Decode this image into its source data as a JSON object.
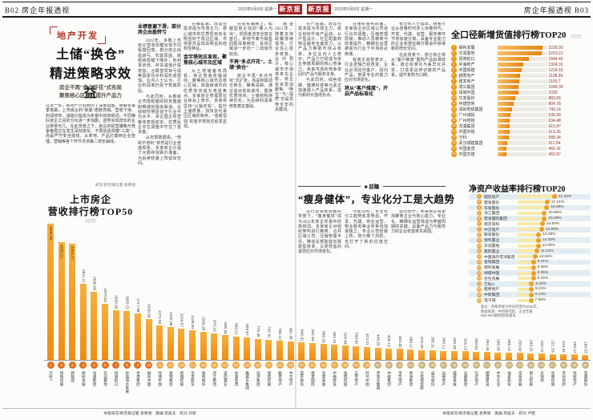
{
  "header": {
    "left_page_no_title": "B02 房企年报透视",
    "left_date": "2023年5月8日 星期一",
    "masthead": "新京报",
    "right_date": "2023年5月8日 星期一",
    "right_page_title_no": "房企年报透视 B03",
    "masthead_color": "#a02020"
  },
  "left_page": {
    "tag": "地产开发",
    "headline_line1": "土储“换仓”",
    "headline_line2": "精进策略求效益",
    "subhead_line1": "房企不再“多点开花”式布局",
    "subhead_line2": "聚焦核心区域、提升产品力",
    "intro": "过去一年，房地产行业经历了深度调整，随着年报季落幕，上市房企的“家底”悉数亮相。营收下滑、利润收窄、减值计提成为年报中的高频词，不同梯队房企之间的分化进一步加剧，逆势实现增长的企业寥寥无几。在此背景之下，房企的经营策略与竞争格局正在发生深刻变化：不再追逐规模“三高”，而是严守安全底线，从拿地、产品打磨到企业管理、营销等各个环节寻求第二增长曲线。",
    "byline": "采写/新京报记者 袁秀丽",
    "chart_title_line1": "上市房企",
    "chart_title_line2": "营收排行榜TOP50",
    "chart_unit": "（亿元）",
    "columns": [
      {
        "blocks": [
          {
            "h": "业绩普遍下滑，部分房企由盈转亏"
          },
          {
            "p": "2022年，多数上市房企营收规模出现不同程度回落，部分房企由盈转亏。究其原因，除结转规模下降外，毛利率走低、存货减值计提增加、合联营项目亏损等因素均对利润形成侵蚀。业内人士认为，行业利润率仍处于筑底阶段。"
          },
          {
            "p": "与此同时，头部房企凭借稳健的财务盘面和畅通的融资渠道，业绩韧性明显强于行业平均水平。央企国企阵营整体表现稳定，优质民企亦在调整中守住了基本盘。"
          },
          {
            "p": "从年报数据看，“增收不增利”依然是行业普遍现象，多家房企计提了大额存货跌价准备，为后续轻装上阵留出空间。"
          }
        ]
      },
      {
        "blocks": [
          {
            "p": "在销售端，改善性需求成为市场主力，核心城市的优质项目去化明显好于周边区域，市场复苏呈现出明显的结构性特征。"
          },
          {
            "h": "金字塔效应显现，聚焦核心城市及区域"
          },
          {
            "p": "从土地储备布局看，房企普遍收缩战线，聚焦核心城市及核心区域，高能级城市的优质地块成为竞逐焦点。多家房企管理层在业绩会上表示，未来将坚持“以销定投”，提升土储质量，加快去化承压区域的库存，“强者恒强”的金字塔效应愈发显现。"
          }
        ]
      },
      {
        "blocks": [
          {
            "p": "在投资策略上，稳健型房企强调“量入为出”，把现金流安全放在首位，拿地节奏与销售回款深度绑定，投资区域进一步向一二线城市收敛。"
          },
          {
            "h": "不再“多点开花”，土储“换仓”"
          },
          {
            "p": "房企不再“多点开花”式扩张，而是积极调仓换仓、聚焦深耕。通过退出低效城市、置换优质地块，土储结构持续优化，为后续利润率修复奠定基础。"
          }
        ]
      },
      {
        "blocks": [
          {
            "p": "展望2023年，随着支持政策持续落地，行业信心逐步修复。业内预计，核心城市市场将率先企稳，房企投资更加聚焦，“换仓”与“提质”仍是贯穿全年的关键词。"
          }
        ]
      }
    ]
  },
  "right_page": {
    "top_columns": [
      {
        "blocks": [
          {
            "p": "在产品端，改善性需求成为市场主力，房企纷纷升级产品线，从户型设计、社区配套到物业服务全面发力，以产品力换取市场占有率。多位业内人士表示，产品力已经成为房企穿越周期的核心竞争力，未来市场的竞争将回归产品与服务本身。"
          },
          {
            "p": "与此同时，绿色低碳、健康科技等元素正加速融入产品体系，成为新的价值增长点。"
          }
        ]
      },
      {
        "blocks": [
          {
            "p": "在组织架构层面，多家房企对区域公司进行合并调整，压缩管理层级，推动人员精简与效率提升，精细化运营被视为行业下半场的必修课。"
          },
          {
            "p": "有房企高管表示，行业逻辑已经改变，企业必须回归客户、回归产品，用更专业的能力应对市场变化。"
          },
          {
            "h": "将从“客户维度”，开启产品标准化"
          }
        ]
      },
      {
        "blocks": [
          {
            "p": "有分析人士指出，随着行业从增量时代步入存量时代，开发、代建、运营、服务等环节将加速分离，具备专业能力的企业有望在细分赛道中获得新的增长空间。"
          },
          {
            "p": "在此背景下，部分房企将从“客户维度”重构产品标准体系，通过标准化与差异化并举，打造更具辨识度的产品系，提升复购与口碑。"
          }
        ]
      }
    ],
    "section_label": "■ 前瞻",
    "headline": "“瘦身健体”，专业化分工是大趋势",
    "bottom_columns": [
      {
        "blocks": [
          {
            "p": "在行业深度调整的背景下，“瘦身健体”成为2022年房企年报中的高频词。多家房企对组织架构进行精简，合并区域公司、压缩管理半径，推动总部职能向赋能型转变，以更轻盈的姿态应对市场变化。"
          }
        ]
      },
      {
        "blocks": [
          {
            "p": "与此同时，专业化分工趋势愈发明显。开发、代建、商业运营、物业服务等业务条线加速独立，专业公司轻装上阵，既分散了风险，也打开了新的估值空间。"
          }
        ]
      },
      {
        "blocks": [
          {
            "p": "业内预计，未来房企将更加聚焦主业与核心能力，专业化、精细化运营将成为穿越周期的关键，具备产品力与服务力的企业有望率先突围。"
          }
        ]
      }
    ]
  },
  "chart_data": [
    {
      "type": "bar",
      "orientation": "vertical",
      "title": "上市房企营收排行榜TOP50",
      "unit": "亿元",
      "categories": [
        "万科A",
        "绿地控股",
        "碧桂园",
        "保利发展",
        "龙湖集团",
        "华润置地",
        "招商蛇口",
        "中国海外发展",
        "世茂集团",
        "融创中国",
        "绿城中国",
        "金地集团",
        "新城控股",
        "华发股份",
        "金科股份",
        "滨江集团",
        "美的置业",
        "中国金茂",
        "雅居乐集团",
        "远洋集团",
        "旭辉控股",
        "越秀地产",
        "中交地产",
        "首开股份",
        "建发国际",
        "合景泰富",
        "中南建设",
        "金辉控股",
        "正荣地产",
        "时代中国",
        "佳兆业集团",
        "中骏集团",
        "宝龙地产",
        "禹洲集团",
        "大悦城控股",
        "迪马股份",
        "光明地产",
        "城建发展",
        "天健集团",
        "信达地产",
        "栖霞建设",
        "中华企业",
        "福星股份",
        "京投发展",
        "南山控股",
        "天地源",
        "华联控股",
        "苏州高新",
        "荣安地产",
        "亚通股份"
      ],
      "values": [
        5038.38,
        4355.21,
        4303.71,
        2811.11,
        2505.65,
        2070.61,
        1830.03,
        1803.21,
        1717.08,
        1500.36,
        1271.53,
        1202.08,
        1154.57,
        1109.4,
        1036.28,
        975.16,
        908.34,
        860.21,
        829.87,
        775.45,
        741.91,
        706.1,
        681.35,
        645.91,
        631.64,
        586.33,
        552.31,
        528.64,
        500.62,
        470.21,
        443.25,
        426.13,
        404.42,
        389.11,
        370.25,
        355.31,
        340.12,
        330.24,
        316.13,
        300.52,
        291.04,
        280.33,
        268.14,
        255.92,
        243.31,
        232.12,
        221.53,
        210.34,
        200.12,
        190.53
      ],
      "labels": [
        "5038.38",
        "4355.21",
        "4303.71",
        "2811.11",
        "2505.65",
        "2070.61",
        "1830.03",
        "1803.21",
        "1717.08",
        "1500.36",
        "1271.53",
        "1202.08",
        "1154.57",
        "1109.40",
        "1036.28",
        "975.16",
        "908.34",
        "860.21",
        "829.87",
        "775.45",
        "741.91",
        "706.10",
        "681.35",
        "645.91",
        "631.64",
        "586.33",
        "552.31",
        "528.64",
        "500.62",
        "470.21",
        "443.25",
        "426.13",
        "404.42",
        "389.11",
        "370.25",
        "355.31",
        "340.12",
        "330.24",
        "316.13",
        "300.52",
        "291.04",
        "280.33",
        "268.14",
        "255.92",
        "243.31",
        "232.12",
        "221.53",
        "210.34",
        "200.12",
        "190.53"
      ]
    },
    {
      "type": "bar",
      "orientation": "horizontal",
      "title": "全口径新增货值排行榜TOP20",
      "unit": "（亿元）",
      "categories": [
        "保利发展",
        "华润置地",
        "招商蛇口",
        "中海地产",
        "中国铁建",
        "越秀地产",
        "建发房产",
        "滨江集团",
        "绿城中国",
        "华发股份",
        "中建智地",
        "深圳地铁集团",
        "广州城投",
        "广州地铁",
        "龙湖集团",
        "中国中铁",
        "万科",
        "武汉城建集团",
        "中国金茂",
        "中国交建"
      ],
      "values": [
        2226.93,
        2219.21,
        1584.45,
        1304.31,
        1218.15,
        1128.39,
        1103.7,
        1048.33,
        1035,
        883.65,
        804.78,
        749.14,
        636.99,
        634.48,
        615.87,
        613.26,
        588.34,
        511.54,
        465.41,
        462.87
      ],
      "labels": [
        "2226.93",
        "2219.21",
        "1584.45",
        "1304.31",
        "1218.15",
        "1128.39",
        "1103.7",
        "1048.33",
        "1035",
        "883.65",
        "804.78",
        "749.14",
        "636.99",
        "634.48",
        "615.87",
        "613.26",
        "588.34",
        "511.54",
        "465.41",
        "462.87"
      ]
    },
    {
      "type": "bar",
      "orientation": "horizontal",
      "title": "净资产收益率排行榜TOP20",
      "unit": "%",
      "categories": [
        "国贸地产",
        "建发股份",
        "华发股份",
        "滨江集团",
        "建发国际集团",
        "南京高科",
        "中交地产",
        "联发股份",
        "保利置业",
        "华润置地",
        "美的置业",
        "中国海外宏洋集团",
        "金地集团",
        "保利发展",
        "绿城中国",
        "合生创展",
        "万科A",
        "越秀地产",
        "中新集团",
        "电子城"
      ],
      "values": [
        21.32,
        17.14,
        16.99,
        15.68,
        15.68,
        14.5,
        13.99,
        12.38,
        12.2,
        12.09,
        11.31,
        10.52,
        9.41,
        9.36,
        9.35,
        9.32,
        8.34,
        8.21,
        8.14,
        7.98
      ],
      "labels": [
        "21.32%",
        "17.14%",
        "16.99%",
        "15.68%",
        "15.68%",
        "14.50%",
        "13.99%",
        "12.38%",
        "12.20%",
        "12.09%",
        "11.31%",
        "10.52%",
        "9.41%",
        "9.36%",
        "9.35%",
        "9.32%",
        "8.34%",
        "8.21%",
        "8.14%",
        "7.98%"
      ],
      "notes": [
        "备注：各榜单统计时间范围为2022年。",
        "数据来源：中指研究院、企业年报",
        "B02-B03版制图/高俊夫"
      ]
    }
  ],
  "footer": {
    "left": "本版采写/新京报记者 袁秀丽　美编 高俊夫　校对 刘军",
    "right": "本版采写/新京报记者 袁秀丽　美编 高俊夫　校对 卢茜"
  }
}
